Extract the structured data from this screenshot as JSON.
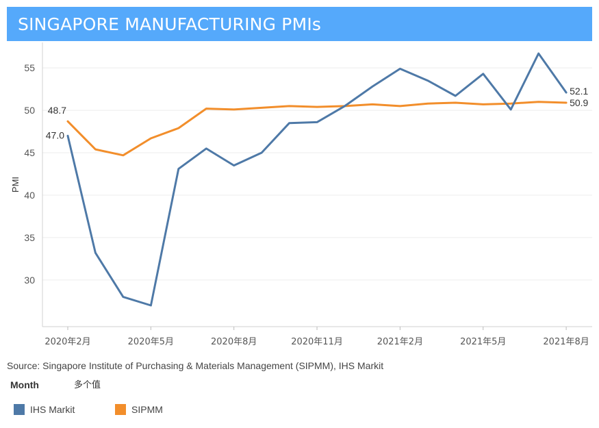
{
  "header": {
    "title": "SINGAPORE MANUFACTURING PMIs"
  },
  "chart_data": {
    "type": "line",
    "ylabel": "PMI",
    "xlabel": "",
    "ylim": [
      24.5,
      58
    ],
    "y_ticks": [
      30,
      35,
      40,
      45,
      50,
      55
    ],
    "x_ticks": [
      {
        "index": 0,
        "label": "2020年2月"
      },
      {
        "index": 3,
        "label": "2020年5月"
      },
      {
        "index": 6,
        "label": "2020年8月"
      },
      {
        "index": 9,
        "label": "2020年11月"
      },
      {
        "index": 12,
        "label": "2021年2月"
      },
      {
        "index": 15,
        "label": "2021年5月"
      },
      {
        "index": 18,
        "label": "2021年8月"
      }
    ],
    "series": [
      {
        "name": "IHS Markit",
        "color": "#4e79a7",
        "values": [
          47.0,
          33.2,
          28.0,
          27.0,
          43.1,
          45.5,
          43.5,
          45.0,
          48.5,
          48.6,
          50.5,
          52.8,
          54.9,
          53.5,
          51.7,
          54.3,
          50.1,
          56.7,
          52.1
        ],
        "start_label": "47.0",
        "end_label": "52.1"
      },
      {
        "name": "SIPMM",
        "color": "#f28e2b",
        "values": [
          48.7,
          45.4,
          44.7,
          46.7,
          47.9,
          50.2,
          50.1,
          50.3,
          50.5,
          50.4,
          50.5,
          50.7,
          50.5,
          50.8,
          50.9,
          50.7,
          50.8,
          51.0,
          50.9
        ],
        "start_label": "48.7",
        "end_label": "50.9"
      }
    ]
  },
  "source": "Source: Singapore Institute of Purchasing & Materials Management (SIPMM), IHS Markit",
  "filter": {
    "label": "Month",
    "value": "多个值"
  },
  "legend": [
    {
      "label": "IHS Markit",
      "color": "#4e79a7"
    },
    {
      "label": "SIPMM",
      "color": "#f28e2b"
    }
  ]
}
